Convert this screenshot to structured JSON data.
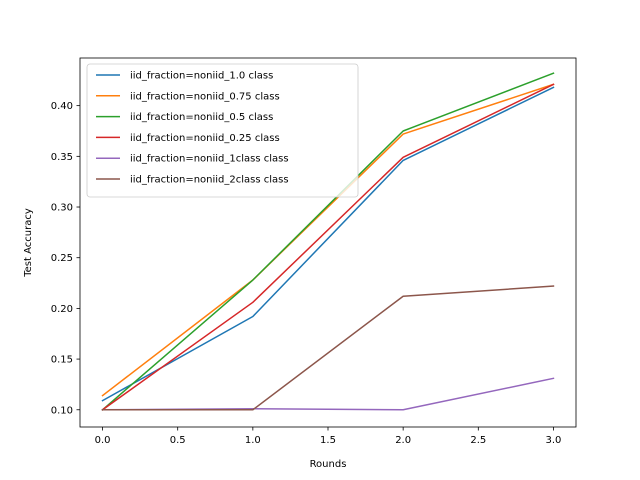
{
  "chart_data": {
    "type": "line",
    "title": "",
    "xlabel": "Rounds",
    "ylabel": "Test Accuracy",
    "x": [
      0,
      1,
      2,
      3
    ],
    "xlim": [
      -0.15,
      3.15
    ],
    "ylim": [
      0.083,
      0.447
    ],
    "xticks": [
      0.0,
      0.5,
      1.0,
      1.5,
      2.0,
      2.5,
      3.0
    ],
    "xtick_labels": [
      "0.0",
      "0.5",
      "1.0",
      "1.5",
      "2.0",
      "2.5",
      "3.0"
    ],
    "yticks": [
      0.1,
      0.15,
      0.2,
      0.25,
      0.3,
      0.35,
      0.4
    ],
    "ytick_labels": [
      "0.10",
      "0.15",
      "0.20",
      "0.25",
      "0.30",
      "0.35",
      "0.40"
    ],
    "grid": false,
    "legend_position": "top-left",
    "series": [
      {
        "name": "iid_fraction=noniid_1.0 class",
        "color": "#1f77b4",
        "values": [
          0.109,
          0.192,
          0.346,
          0.418
        ]
      },
      {
        "name": "iid_fraction=noniid_0.75 class",
        "color": "#ff7f0e",
        "values": [
          0.114,
          0.228,
          0.372,
          0.421
        ]
      },
      {
        "name": "iid_fraction=noniid_0.5 class",
        "color": "#2ca02c",
        "values": [
          0.1,
          0.228,
          0.375,
          0.432
        ]
      },
      {
        "name": "iid_fraction=noniid_0.25 class",
        "color": "#d62728",
        "values": [
          0.1,
          0.206,
          0.349,
          0.421
        ]
      },
      {
        "name": "iid_fraction=noniid_1class class",
        "color": "#9467bd",
        "values": [
          0.1,
          0.101,
          0.1,
          0.131
        ]
      },
      {
        "name": "iid_fraction=noniid_2class class",
        "color": "#8c564b",
        "values": [
          0.1,
          0.1,
          0.212,
          0.222
        ]
      }
    ]
  }
}
